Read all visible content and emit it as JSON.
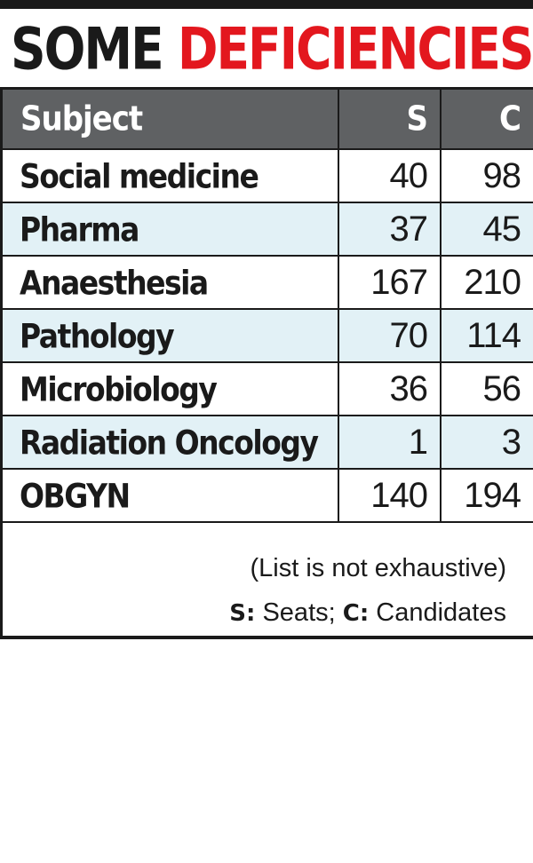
{
  "title": {
    "part1": "SOME",
    "part2": "DEFICIENCIES"
  },
  "table": {
    "headers": [
      "Subject",
      "S",
      "C"
    ],
    "rows": [
      {
        "subject": "Social medicine",
        "s": "40",
        "c": "98"
      },
      {
        "subject": "Pharma",
        "s": "37",
        "c": "45"
      },
      {
        "subject": "Anaesthesia",
        "s": "167",
        "c": "210"
      },
      {
        "subject": "Pathology",
        "s": "70",
        "c": "114"
      },
      {
        "subject": "Microbiology",
        "s": "36",
        "c": "56"
      },
      {
        "subject": "Radiation Oncology",
        "s": "1",
        "c": "3"
      },
      {
        "subject": "OBGYN",
        "s": "140",
        "c": "194"
      }
    ]
  },
  "footer": {
    "note": "(List is not exhaustive)",
    "legend_s_key": "S:",
    "legend_s_text": " Seats; ",
    "legend_c_key": "C:",
    "legend_c_text": " Candidates"
  },
  "colors": {
    "title_accent": "#e3171e",
    "header_bg": "#5f6163",
    "alt_row_bg": "#e2f1f6",
    "ink": "#1a1a1a"
  }
}
